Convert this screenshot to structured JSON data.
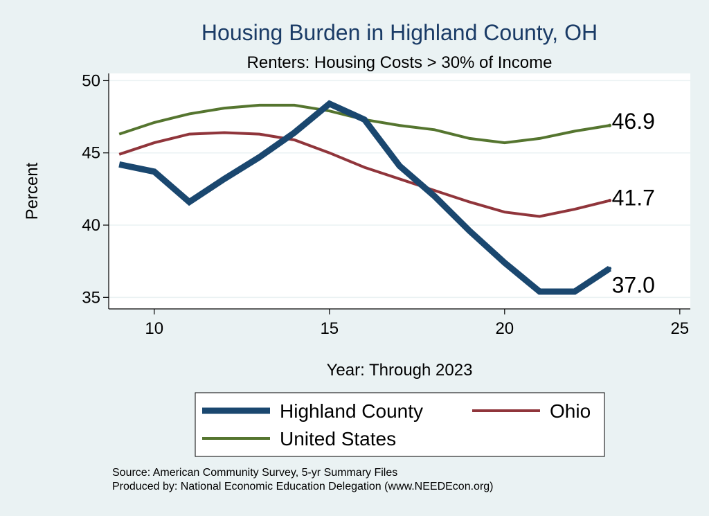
{
  "chart_data": {
    "type": "line",
    "title": "Housing Burden in Highland County, OH",
    "subtitle": "Renters: Housing Costs > 30% of Income",
    "xlabel": "Year: Through 2023",
    "ylabel": "Percent",
    "xlim": [
      8.7,
      25.3
    ],
    "ylim": [
      34.2,
      50.5
    ],
    "xticks": [
      10,
      15,
      20,
      25
    ],
    "yticks": [
      35,
      40,
      45,
      50
    ],
    "grid": true,
    "legend_position": "bottom",
    "x": [
      9,
      10,
      11,
      12,
      13,
      14,
      15,
      16,
      17,
      18,
      19,
      20,
      21,
      22,
      23
    ],
    "series": [
      {
        "name": "Highland County",
        "color": "#1a476f",
        "values": [
          44.2,
          43.7,
          41.6,
          43.2,
          44.7,
          46.4,
          48.4,
          47.3,
          44.1,
          42.0,
          39.6,
          37.4,
          35.4,
          35.4,
          37.0
        ],
        "end_label": "37.0"
      },
      {
        "name": "Ohio",
        "color": "#90353b",
        "values": [
          44.9,
          45.7,
          46.3,
          46.4,
          46.3,
          45.9,
          45.0,
          44.0,
          43.2,
          42.4,
          41.6,
          40.9,
          40.6,
          41.1,
          41.7
        ],
        "end_label": "41.7"
      },
      {
        "name": "United States",
        "color": "#55752f",
        "values": [
          46.3,
          47.1,
          47.7,
          48.1,
          48.3,
          48.3,
          47.9,
          47.3,
          46.9,
          46.6,
          46.0,
          45.7,
          46.0,
          46.5,
          46.9
        ],
        "end_label": "46.9"
      }
    ]
  },
  "source_lines": [
    "Source: American Community Survey, 5-yr Summary Files",
    "Produced by: National Economic Education Delegation (www.NEEDEcon.org)"
  ]
}
